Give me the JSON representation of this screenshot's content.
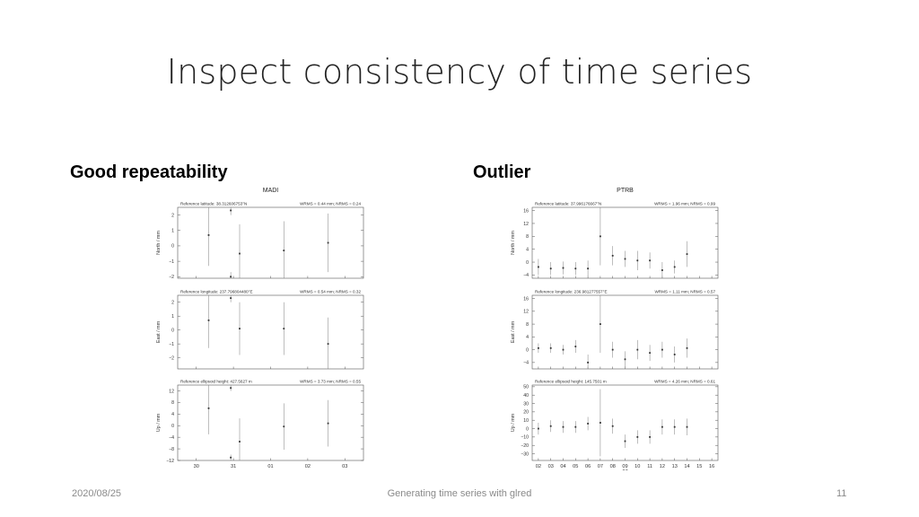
{
  "slide": {
    "title": "Inspect consistency of time series",
    "left_heading": "Good repeatability",
    "right_heading": "Outlier",
    "footer_date": "2020/08/25",
    "footer_center": "Generating time series with glred",
    "footer_page": "11"
  },
  "chart_data": [
    {
      "type": "scatter",
      "title": "MADI",
      "x_tick_labels": [
        "30",
        "31",
        "01",
        "02",
        "03"
      ],
      "xlim": [
        29.3,
        33.5
      ],
      "panels": [
        {
          "ylabel": "North / mm",
          "reference": "Reference latitude: 38.312606753°N",
          "stats": "WRMS = 0.44 mm; NRMS = 0.24",
          "ylim": [
            -2.1,
            2.5
          ],
          "yticks": [
            -2,
            -1,
            0,
            1,
            2
          ],
          "points": [
            {
              "x": 30,
              "y": 0.7,
              "err": 2.0
            },
            {
              "x": 30.5,
              "y": 2.3,
              "err": 0.3
            },
            {
              "x": 30.5,
              "y": -2.0,
              "err": 0.3
            },
            {
              "x": 30.7,
              "y": -0.5,
              "err": 1.9
            },
            {
              "x": 31.7,
              "y": -0.3,
              "err": 1.9
            },
            {
              "x": 32.7,
              "y": 0.2,
              "err": 1.9
            }
          ]
        },
        {
          "ylabel": "East / mm",
          "reference": "Reference longitude: 237.796804480°E",
          "stats": "WRMS = 0.54 mm; NRMS = 0.32",
          "ylim": [
            -2.8,
            2.5
          ],
          "yticks": [
            -2,
            -1,
            0,
            1,
            2
          ],
          "points": [
            {
              "x": 30,
              "y": 0.7,
              "err": 2.0
            },
            {
              "x": 30.5,
              "y": 2.3,
              "err": 0.3
            },
            {
              "x": 30.7,
              "y": 0.1,
              "err": 1.9
            },
            {
              "x": 31.7,
              "y": 0.1,
              "err": 1.9
            },
            {
              "x": 32.7,
              "y": -1.0,
              "err": 1.9
            }
          ]
        },
        {
          "ylabel": "Up / mm",
          "reference": "Reference ellipsoid height: 427.5627 m",
          "stats": "WRMS = 3.73 mm; NRMS = 0.55",
          "ylim": [
            -12,
            14
          ],
          "yticks": [
            -12,
            -8,
            -4,
            0,
            4,
            8,
            12
          ],
          "points": [
            {
              "x": 30,
              "y": 6,
              "err": 9
            },
            {
              "x": 30.5,
              "y": 13,
              "err": 1
            },
            {
              "x": 30.5,
              "y": -11,
              "err": 1
            },
            {
              "x": 30.7,
              "y": -5.5,
              "err": 8
            },
            {
              "x": 31.7,
              "y": -0.3,
              "err": 8
            },
            {
              "x": 32.7,
              "y": 0.8,
              "err": 8
            }
          ]
        }
      ]
    },
    {
      "type": "scatter",
      "title": "PTRB",
      "x_tick_labels": [
        "02",
        "03",
        "04",
        "05",
        "06",
        "07",
        "08",
        "09",
        "10",
        "11",
        "12",
        "13",
        "14",
        "15",
        "16"
      ],
      "x_sub_label": "07",
      "xlim": [
        1.5,
        16.5
      ],
      "panels": [
        {
          "ylabel": "North / mm",
          "reference": "Reference latitude: 37.996176667°N",
          "stats": "WRMS = 1.96 mm; NRMS = 0.99",
          "ylim": [
            -5,
            17
          ],
          "yticks": [
            -4,
            0,
            4,
            8,
            12,
            16
          ],
          "points": [
            {
              "x": 2,
              "y": -1.5,
              "err": 2.5
            },
            {
              "x": 3,
              "y": -2,
              "err": 2.0
            },
            {
              "x": 4,
              "y": -1.8,
              "err": 2.0
            },
            {
              "x": 5,
              "y": -2,
              "err": 2.0
            },
            {
              "x": 6,
              "y": -2,
              "err": 2.5
            },
            {
              "x": 7,
              "y": 8,
              "err": 9
            },
            {
              "x": 8,
              "y": 2,
              "err": 3
            },
            {
              "x": 9,
              "y": 1,
              "err": 2.5
            },
            {
              "x": 10,
              "y": 0.5,
              "err": 3
            },
            {
              "x": 11,
              "y": 0.5,
              "err": 2.5
            },
            {
              "x": 12,
              "y": -2.5,
              "err": 2.5
            },
            {
              "x": 13,
              "y": -1.5,
              "err": 2.0
            },
            {
              "x": 14,
              "y": 2.5,
              "err": 4
            }
          ]
        },
        {
          "ylabel": "East / mm",
          "reference": "Reference longitude: 236.981277557°E",
          "stats": "WRMS = 1.11 mm; NRMS = 0.57",
          "ylim": [
            -6,
            17
          ],
          "yticks": [
            -4,
            0,
            4,
            8,
            12,
            16
          ],
          "points": [
            {
              "x": 2,
              "y": 0.5,
              "err": 1.5
            },
            {
              "x": 3,
              "y": 0.5,
              "err": 1.5
            },
            {
              "x": 4,
              "y": 0,
              "err": 1.5
            },
            {
              "x": 5,
              "y": 1,
              "err": 2.0
            },
            {
              "x": 6,
              "y": -4,
              "err": 2.5
            },
            {
              "x": 7,
              "y": 8,
              "err": 9
            },
            {
              "x": 8,
              "y": 0,
              "err": 2.5
            },
            {
              "x": 9,
              "y": -3,
              "err": 2.5
            },
            {
              "x": 10,
              "y": 0,
              "err": 3
            },
            {
              "x": 11,
              "y": -1,
              "err": 2.5
            },
            {
              "x": 12,
              "y": 0,
              "err": 2.5
            },
            {
              "x": 13,
              "y": -1.5,
              "err": 2.5
            },
            {
              "x": 14,
              "y": 0.5,
              "err": 3
            }
          ]
        },
        {
          "ylabel": "Up / mm",
          "reference": "Reference ellipsoid height: 145.7501 m",
          "stats": "WRMS = 4.26 mm; NRMS = 0.61",
          "ylim": [
            -38,
            52
          ],
          "yticks": [
            -30,
            -20,
            -10,
            0,
            10,
            20,
            30,
            40,
            50
          ],
          "points": [
            {
              "x": 2,
              "y": 0,
              "err": 7
            },
            {
              "x": 3,
              "y": 3,
              "err": 7
            },
            {
              "x": 4,
              "y": 2,
              "err": 7
            },
            {
              "x": 5,
              "y": 2,
              "err": 7
            },
            {
              "x": 6,
              "y": 6,
              "err": 8
            },
            {
              "x": 7,
              "y": 7,
              "err": 40
            },
            {
              "x": 8,
              "y": 3,
              "err": 9
            },
            {
              "x": 9,
              "y": -15,
              "err": 8
            },
            {
              "x": 10,
              "y": -10,
              "err": 8
            },
            {
              "x": 11,
              "y": -10,
              "err": 8
            },
            {
              "x": 12,
              "y": 2,
              "err": 9
            },
            {
              "x": 13,
              "y": 2,
              "err": 9
            },
            {
              "x": 14,
              "y": 2,
              "err": 10
            }
          ]
        }
      ]
    }
  ]
}
